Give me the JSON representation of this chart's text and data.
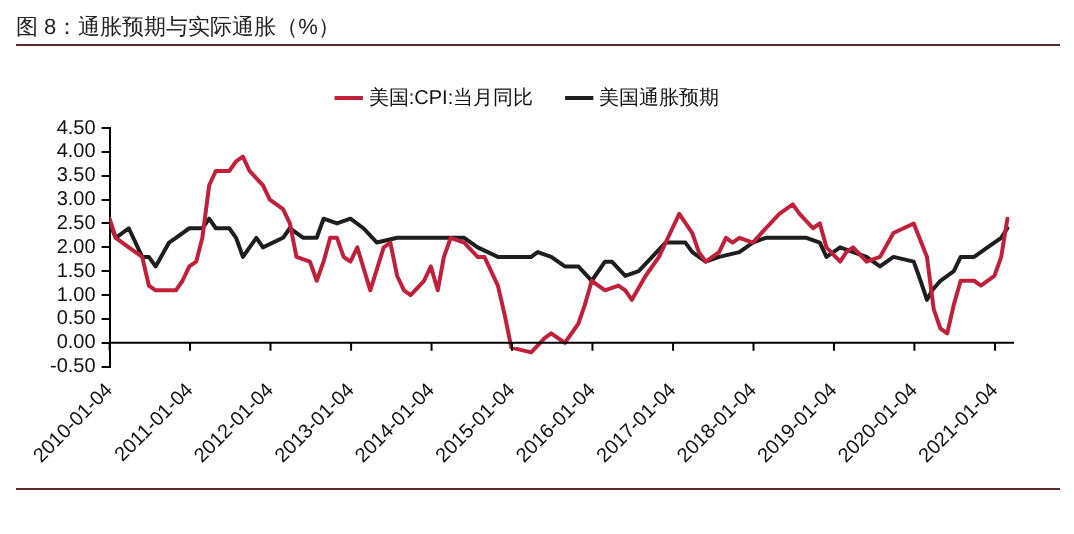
{
  "chart_data": {
    "type": "line",
    "title": "图 8：通胀预期与实际通胀（%）",
    "xlim": [
      "2010-01-04",
      "2021-03-31"
    ],
    "xticks": [
      "2010-01-04",
      "2011-01-04",
      "2012-01-04",
      "2013-01-04",
      "2014-01-04",
      "2015-01-04",
      "2016-01-04",
      "2017-01-04",
      "2018-01-04",
      "2019-01-04",
      "2020-01-04",
      "2021-01-04"
    ],
    "ylim": [
      -0.5,
      4.5
    ],
    "yticks": [
      {
        "value": -0.5,
        "label": "-0.50"
      },
      {
        "value": 0,
        "label": "0.00"
      },
      {
        "value": 0.5,
        "label": "0.50"
      },
      {
        "value": 1,
        "label": "1.00"
      },
      {
        "value": 1.5,
        "label": "1.50"
      },
      {
        "value": 2,
        "label": "2.00"
      },
      {
        "value": 2.5,
        "label": "2.50"
      },
      {
        "value": 3,
        "label": "3.00"
      },
      {
        "value": 3.5,
        "label": "3.50"
      },
      {
        "value": 4,
        "label": "4.00"
      },
      {
        "value": 4.5,
        "label": "4.50"
      }
    ],
    "grid": false,
    "legend": "top",
    "marker": "none",
    "line_style": "solid",
    "series": [
      {
        "name": "美国:CPI:当月同比",
        "color": "#c0203a",
        "x": [
          "2010-01-04",
          "2010-02",
          "2010-04",
          "2010-06",
          "2010-07",
          "2010-08",
          "2010-11",
          "2010-12",
          "2011-01",
          "2011-02",
          "2011-03",
          "2011-04",
          "2011-05",
          "2011-07",
          "2011-08",
          "2011-09",
          "2011-10",
          "2011-12",
          "2012-01",
          "2012-03",
          "2012-04",
          "2012-05",
          "2012-07",
          "2012-08",
          "2012-09",
          "2012-10",
          "2012-11",
          "2012-12",
          "2013-01",
          "2013-02",
          "2013-04",
          "2013-06",
          "2013-07",
          "2013-08",
          "2013-09",
          "2013-10",
          "2013-12",
          "2014-01",
          "2014-02",
          "2014-03",
          "2014-04",
          "2014-06",
          "2014-08",
          "2014-09",
          "2014-11",
          "2014-12",
          "2015-01",
          "2015-04",
          "2015-06",
          "2015-07",
          "2015-09",
          "2015-11",
          "2015-12",
          "2016-01",
          "2016-03",
          "2016-05",
          "2016-06",
          "2016-07",
          "2016-09",
          "2016-11",
          "2017-01",
          "2017-02",
          "2017-04",
          "2017-05",
          "2017-06",
          "2017-08",
          "2017-09",
          "2017-10",
          "2017-11",
          "2018-01",
          "2018-03",
          "2018-05",
          "2018-07",
          "2018-08",
          "2018-10",
          "2018-11",
          "2018-12",
          "2019-02",
          "2019-03",
          "2019-04",
          "2019-06",
          "2019-08",
          "2019-10",
          "2020-01",
          "2020-03",
          "2020-04",
          "2020-05",
          "2020-06",
          "2020-07",
          "2020-08",
          "2020-10",
          "2020-11",
          "2021-01",
          "2021-02",
          "2021-03"
        ],
        "values": [
          2.6,
          2.2,
          2.0,
          1.8,
          1.2,
          1.1,
          1.1,
          1.3,
          1.6,
          1.7,
          2.2,
          3.3,
          3.6,
          3.6,
          3.8,
          3.9,
          3.6,
          3.3,
          3.0,
          2.8,
          2.5,
          1.8,
          1.7,
          1.3,
          1.7,
          2.2,
          2.2,
          1.8,
          1.7,
          2.0,
          1.1,
          2.0,
          2.1,
          1.4,
          1.1,
          1.0,
          1.3,
          1.6,
          1.1,
          1.8,
          2.2,
          2.1,
          1.8,
          1.8,
          1.2,
          0.6,
          -0.1,
          -0.2,
          0.1,
          0.2,
          0.0,
          0.4,
          0.8,
          1.3,
          1.1,
          1.2,
          1.1,
          0.9,
          1.4,
          1.8,
          2.4,
          2.7,
          2.3,
          1.9,
          1.7,
          1.9,
          2.2,
          2.1,
          2.2,
          2.1,
          2.4,
          2.7,
          2.9,
          2.7,
          2.4,
          2.5,
          2.0,
          1.7,
          1.9,
          2.0,
          1.7,
          1.8,
          2.3,
          2.5,
          1.8,
          0.7,
          0.3,
          0.2,
          0.8,
          1.3,
          1.3,
          1.2,
          1.4,
          1.8,
          2.6
        ]
      },
      {
        "name": "美国通胀预期",
        "color": "#1e1e1e",
        "x": [
          "2010-01-04",
          "2010-02",
          "2010-04",
          "2010-06",
          "2010-07",
          "2010-08",
          "2010-10",
          "2010-11",
          "2011-01",
          "2011-03",
          "2011-04",
          "2011-05",
          "2011-07",
          "2011-08",
          "2011-09",
          "2011-11",
          "2011-12",
          "2012-03",
          "2012-04",
          "2012-06",
          "2012-08",
          "2012-09",
          "2012-11",
          "2013-01",
          "2013-03",
          "2013-05",
          "2013-08",
          "2013-10",
          "2014-01",
          "2014-04",
          "2014-06",
          "2014-08",
          "2014-11",
          "2015-02",
          "2015-04",
          "2015-05",
          "2015-07",
          "2015-09",
          "2015-11",
          "2016-01",
          "2016-03",
          "2016-04",
          "2016-06",
          "2016-08",
          "2016-10",
          "2016-12",
          "2017-03",
          "2017-04",
          "2017-06",
          "2017-08",
          "2017-11",
          "2018-01",
          "2018-03",
          "2018-06",
          "2018-09",
          "2018-11",
          "2018-12",
          "2019-02",
          "2019-04",
          "2019-06",
          "2019-08",
          "2019-10",
          "2020-01",
          "2020-02",
          "2020-03",
          "2020-03-25",
          "2020-05",
          "2020-07",
          "2020-08",
          "2020-10",
          "2020-12",
          "2021-02",
          "2021-03"
        ],
        "values": [
          2.5,
          2.2,
          2.4,
          1.8,
          1.8,
          1.6,
          2.1,
          2.2,
          2.4,
          2.4,
          2.6,
          2.4,
          2.4,
          2.2,
          1.8,
          2.2,
          2.0,
          2.2,
          2.4,
          2.2,
          2.2,
          2.6,
          2.5,
          2.6,
          2.4,
          2.1,
          2.2,
          2.2,
          2.2,
          2.2,
          2.2,
          2.0,
          1.8,
          1.8,
          1.8,
          1.9,
          1.8,
          1.6,
          1.6,
          1.3,
          1.7,
          1.7,
          1.4,
          1.5,
          1.8,
          2.1,
          2.1,
          1.9,
          1.7,
          1.8,
          1.9,
          2.1,
          2.2,
          2.2,
          2.2,
          2.1,
          1.8,
          2.0,
          1.9,
          1.8,
          1.6,
          1.8,
          1.7,
          1.3,
          0.9,
          1.1,
          1.3,
          1.5,
          1.8,
          1.8,
          2.0,
          2.2,
          2.4
        ]
      }
    ]
  }
}
